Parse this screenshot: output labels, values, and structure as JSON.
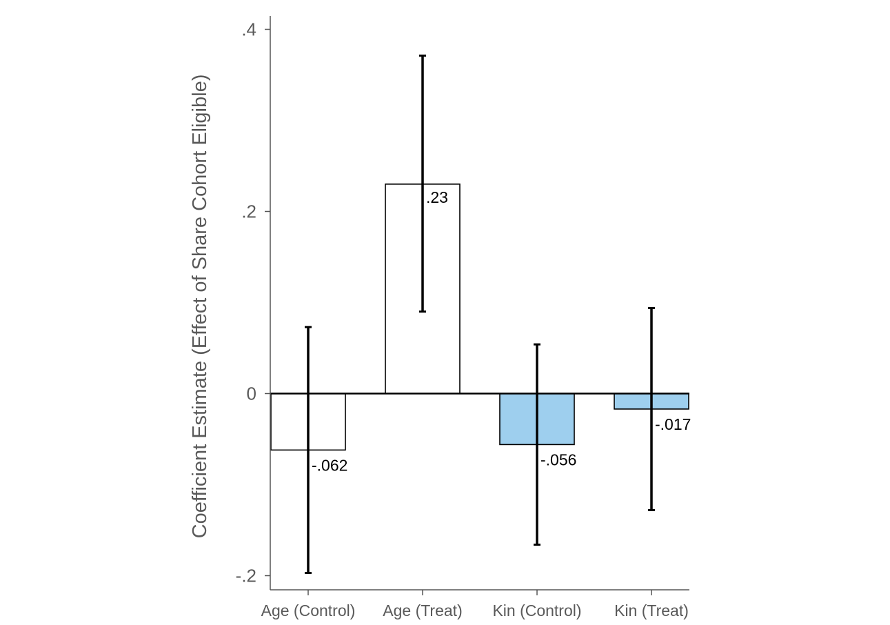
{
  "chart_data": {
    "type": "bar",
    "categories": [
      "Age (Control)",
      "Age (Treat)",
      "Kin (Control)",
      "Kin (Treat)"
    ],
    "values": [
      -0.062,
      0.23,
      -0.056,
      -0.017
    ],
    "value_labels": [
      "-.062",
      ".23",
      "-.056",
      "-.017"
    ],
    "ci_low": [
      -0.197,
      0.09,
      -0.166,
      -0.128
    ],
    "ci_high": [
      0.073,
      0.371,
      0.054,
      0.094
    ],
    "bar_colors": [
      "#ffffff",
      "#ffffff",
      "#9ecfee",
      "#9ecfee"
    ],
    "ylabel": "Coefficient Estimate (Effect of Share Cohort Eligible)",
    "xlabel": "",
    "title": "",
    "ylim": [
      -0.215,
      0.415
    ],
    "yticks": [
      -0.2,
      0,
      0.2,
      0.4
    ],
    "ytick_labels": [
      "-.2",
      "0",
      ".2",
      ".4"
    ],
    "grid": false,
    "legend": "none"
  }
}
